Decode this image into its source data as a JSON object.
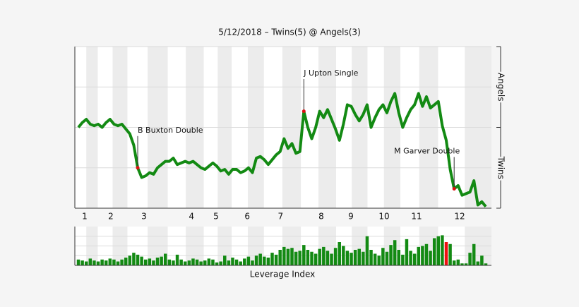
{
  "chart_data": {
    "type": "line",
    "title": "5/12/2018 – Twins(5) @ Angels(3)",
    "top_label": "Angels",
    "bottom_label": "Twins",
    "color": "#138a13",
    "values": [
      50,
      53,
      55,
      52,
      51,
      52,
      50,
      53,
      55,
      52,
      51,
      52,
      49,
      46,
      39,
      25,
      19,
      20,
      22,
      21,
      25,
      27,
      29,
      29,
      31,
      27,
      28,
      29,
      28,
      29,
      27,
      25,
      24,
      26,
      28,
      26,
      23,
      24,
      21,
      24,
      24,
      22,
      23,
      25,
      22,
      31,
      32,
      30,
      27,
      30,
      33,
      35,
      43,
      37,
      40,
      34,
      35,
      60,
      50,
      43,
      50,
      60,
      56,
      61,
      55,
      49,
      42,
      52,
      64,
      63,
      58,
      54,
      58,
      64,
      50,
      56,
      61,
      64,
      59,
      66,
      71,
      59,
      50,
      56,
      61,
      64,
      71,
      63,
      69,
      62,
      64,
      66,
      51,
      42,
      24,
      12,
      14,
      8,
      9,
      10,
      17,
      2,
      4,
      1
    ],
    "xlim": [
      0,
      103
    ],
    "ylim": [
      0,
      100
    ],
    "yticks": [
      0,
      25,
      50,
      75,
      100
    ],
    "grid": true,
    "innings": [
      {
        "label": "1",
        "play": 1.6
      },
      {
        "label": "2",
        "play": 8.2
      },
      {
        "label": "3",
        "play": 16.6
      },
      {
        "label": "4",
        "play": 28.6
      },
      {
        "label": "5",
        "play": 34.8
      },
      {
        "label": "6",
        "play": 42.7
      },
      {
        "label": "7",
        "play": 51.1
      },
      {
        "label": "8",
        "play": 61.4
      },
      {
        "label": "9",
        "play": 68.9
      },
      {
        "label": "10",
        "play": 77.3
      },
      {
        "label": "11",
        "play": 85.5
      },
      {
        "label": "12",
        "play": 96.4
      }
    ],
    "annotations": [
      {
        "text": "B Buxton Double",
        "index": 15
      },
      {
        "text": "J Upton Single",
        "index": 57
      },
      {
        "text": "M Garver Double",
        "index": 95
      }
    ],
    "annotation_color": "#dd1111",
    "leverage": {
      "title": "Leverage Index",
      "color": "#138a13",
      "highlight_color": "#ee1111",
      "highlight": 93,
      "ylim": [
        0,
        4
      ],
      "yticks": [
        1,
        2,
        3
      ],
      "values": [
        0.6,
        0.5,
        0.4,
        0.7,
        0.5,
        0.4,
        0.6,
        0.5,
        0.7,
        0.6,
        0.4,
        0.6,
        0.8,
        1.0,
        1.3,
        1.1,
        0.9,
        0.6,
        0.7,
        0.5,
        0.8,
        0.9,
        1.2,
        0.6,
        0.5,
        1.1,
        0.6,
        0.4,
        0.5,
        0.7,
        0.6,
        0.4,
        0.5,
        0.7,
        0.6,
        0.3,
        0.4,
        1.0,
        0.5,
        0.8,
        0.6,
        0.4,
        0.7,
        0.9,
        0.5,
        1.0,
        1.2,
        0.9,
        0.8,
        1.3,
        1.1,
        1.6,
        1.9,
        1.7,
        1.8,
        1.4,
        1.5,
        2.1,
        1.6,
        1.4,
        1.2,
        1.7,
        1.9,
        1.5,
        1.2,
        1.8,
        2.4,
        2.0,
        1.5,
        1.3,
        1.6,
        1.7,
        1.4,
        3.0,
        1.6,
        1.2,
        1.0,
        1.8,
        1.4,
        2.1,
        2.6,
        1.6,
        1.1,
        2.7,
        1.5,
        1.2,
        1.9,
        2.0,
        2.2,
        1.5,
        2.8,
        3.0,
        3.1,
        2.4,
        2.2,
        0.5,
        0.6,
        0.2,
        0.2,
        1.3,
        2.2,
        0.4,
        1.0,
        0.2
      ]
    }
  }
}
